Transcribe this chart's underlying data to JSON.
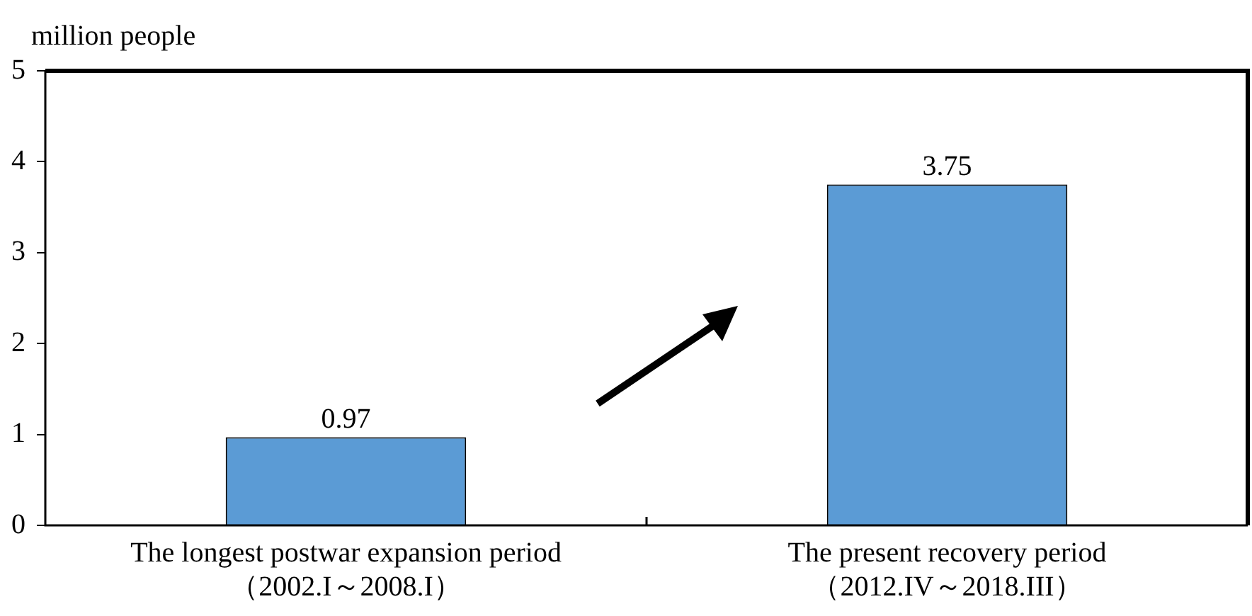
{
  "chart_data": {
    "type": "bar",
    "ylabel": "million people",
    "categories": [
      "The longest postwar expansion period\n（2002.I～2008.I）",
      "The present recovery period\n（2012.IV～2018.III）"
    ],
    "values": [
      0.97,
      3.75
    ],
    "color": "#5b9bd5",
    "ylim": [
      0,
      5
    ],
    "yticks": [
      0,
      1,
      2,
      3,
      4,
      5
    ],
    "grid": false,
    "legend": false,
    "data_labels": true
  }
}
